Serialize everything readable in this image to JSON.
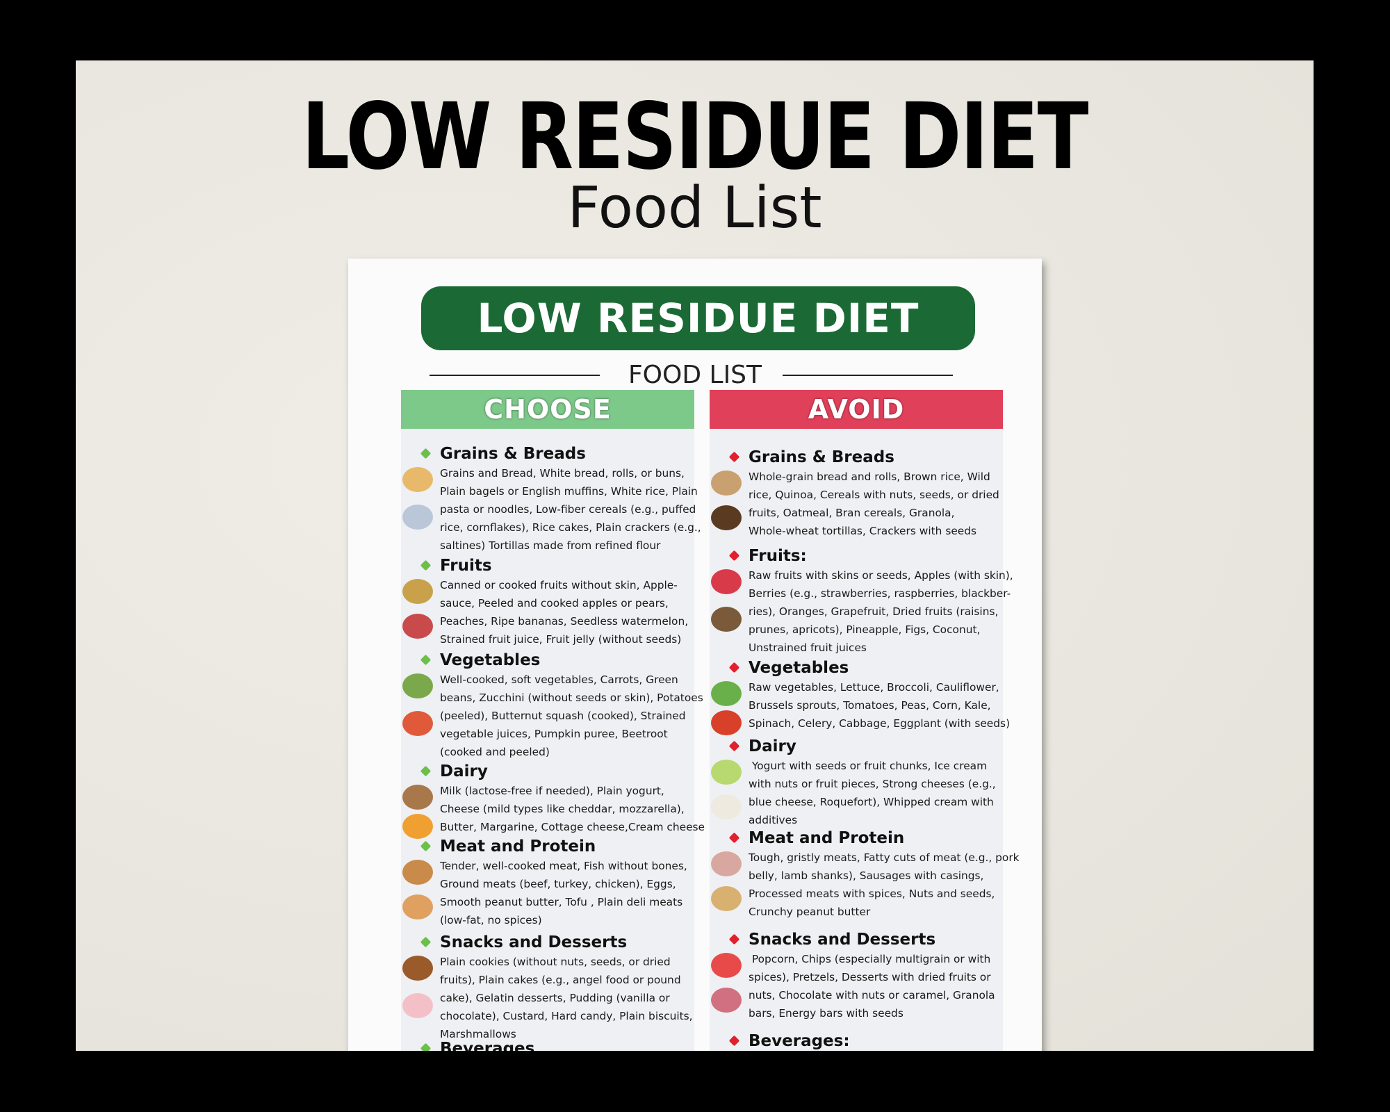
{
  "poster": {
    "title": "LOW RESIDUE DIET",
    "subtitle": "Food List"
  },
  "card": {
    "banner": "LOW RESIDUE DIET",
    "food_list_label": "FOOD LIST",
    "colors": {
      "banner": "#1b6a35",
      "choose": "#7dc98a",
      "avoid": "#e0405a",
      "choose_bullet": "#6cc04a",
      "avoid_bullet": "#e0202e"
    },
    "choose": {
      "label": "CHOOSE",
      "sections": [
        {
          "heading": "Grains & Breads",
          "icons": [
            "bread-slices-icon",
            "cereal-bowl-icon"
          ],
          "lines": [
            "Grains and Bread, White bread, rolls, or buns,",
            "Plain bagels or English muffins, White rice, Plain",
            "pasta or noodles, Low-fiber cereals (e.g., puffed",
            "rice, cornflakes), Rice cakes, Plain crackers (e.g.,",
            "saltines) Tortillas made from refined flour"
          ]
        },
        {
          "heading": "Fruits",
          "icons": [
            "banana-icon",
            "watermelon-icon"
          ],
          "lines": [
            "Canned or cooked fruits without skin, Apple-",
            "sauce, Peeled and cooked apples or pears,",
            "Peaches, Ripe bananas, Seedless watermelon,",
            "Strained fruit juice, Fruit jelly (without seeds)"
          ]
        },
        {
          "heading": "Vegetables",
          "icons": [
            "vegetables-icon",
            "tomato-juice-icon"
          ],
          "lines": [
            "Well-cooked, soft vegetables, Carrots, Green",
            "beans, Zucchini (without seeds or skin), Potatoes",
            "(peeled), Butternut squash (cooked), Strained",
            "vegetable juices, Pumpkin puree, Beetroot",
            "(cooked and peeled)"
          ]
        },
        {
          "heading": "Dairy",
          "icons": [
            "yogurt-bowl-icon",
            "cheese-icon"
          ],
          "lines": [
            "Milk (lactose-free if needed), Plain yogurt,",
            "Cheese (mild types like cheddar, mozzarella),",
            "Butter, Margarine, Cottage cheese,Cream cheese"
          ]
        },
        {
          "heading": "Meat and Protein",
          "icons": [
            "roast-chicken-icon",
            "egg-basket-icon"
          ],
          "lines": [
            "Tender, well-cooked meat, Fish without bones,",
            "Ground meats (beef, turkey, chicken), Eggs,",
            "Smooth peanut butter, Tofu , Plain deli meats",
            "(low-fat, no spices)"
          ]
        },
        {
          "heading": "Snacks and Desserts",
          "icons": [
            "cookies-icon",
            "pudding-icon"
          ],
          "lines": [
            "Plain cookies (without nuts, seeds, or dried",
            "fruits), Plain cakes (e.g., angel food or pound",
            "cake), Gelatin desserts, Pudding (vanilla or",
            "chocolate), Custard, Hard candy, Plain biscuits,",
            "Marshmallows"
          ]
        },
        {
          "heading": "Beverages",
          "icons": [],
          "lines": []
        }
      ]
    },
    "avoid": {
      "label": "AVOID",
      "sections": [
        {
          "heading": "Grains & Breads",
          "icons": [
            "whole-grain-loaf-icon",
            "oatmeal-bowl-icon"
          ],
          "lines": [
            "Whole-grain bread and rolls, Brown rice, Wild",
            "rice, Quinoa, Cereals with nuts, seeds, or dried",
            "fruits, Oatmeal, Bran cereals, Granola,",
            "Whole-wheat tortillas, Crackers with seeds"
          ]
        },
        {
          "heading": "Fruits:",
          "icons": [
            "raspberries-icon",
            "coconut-icon"
          ],
          "lines": [
            "Raw fruits with skins or seeds, Apples (with skin),",
            "Berries (e.g., strawberries, raspberries, blackber-",
            "ries), Oranges, Grapefruit, Dried fruits (raisins,",
            "prunes, apricots), Pineapple, Figs, Coconut,",
            "Unstrained fruit juices"
          ]
        },
        {
          "heading": "Vegetables",
          "icons": [
            "lettuce-icon",
            "tomatoes-icon"
          ],
          "lines": [
            "Raw vegetables, Lettuce, Broccoli, Cauliflower,",
            "Brussels sprouts, Tomatoes, Peas, Corn, Kale,",
            "Spinach, Celery, Cabbage, Eggplant (with seeds)"
          ]
        },
        {
          "heading": "Dairy",
          "icons": [
            "ice-cream-cup-icon",
            "whipped-cream-icon"
          ],
          "lines": [
            " Yogurt with seeds or fruit chunks, Ice cream",
            "with nuts or fruit pieces, Strong cheeses (e.g.,",
            "blue cheese, Roquefort), Whipped cream with",
            "additives"
          ]
        },
        {
          "heading": "Meat and Protein",
          "icons": [
            "meat-platter-icon",
            "nuts-icon"
          ],
          "lines": [
            "Tough, gristly meats, Fatty cuts of meat (e.g., pork",
            "belly, lamb shanks), Sausages with casings,",
            "Processed meats with spices, Nuts and seeds,",
            "Crunchy peanut butter"
          ]
        },
        {
          "heading": "Snacks and Desserts",
          "icons": [
            "popcorn-icon",
            "trifle-icon"
          ],
          "lines": [
            " Popcorn, Chips (especially multigrain or with",
            "spices), Pretzels, Desserts with dried fruits or",
            "nuts, Chocolate with nuts or caramel, Granola",
            "bars, Energy bars with seeds"
          ]
        },
        {
          "heading": "Beverages:",
          "icons": [],
          "lines": []
        }
      ]
    }
  }
}
